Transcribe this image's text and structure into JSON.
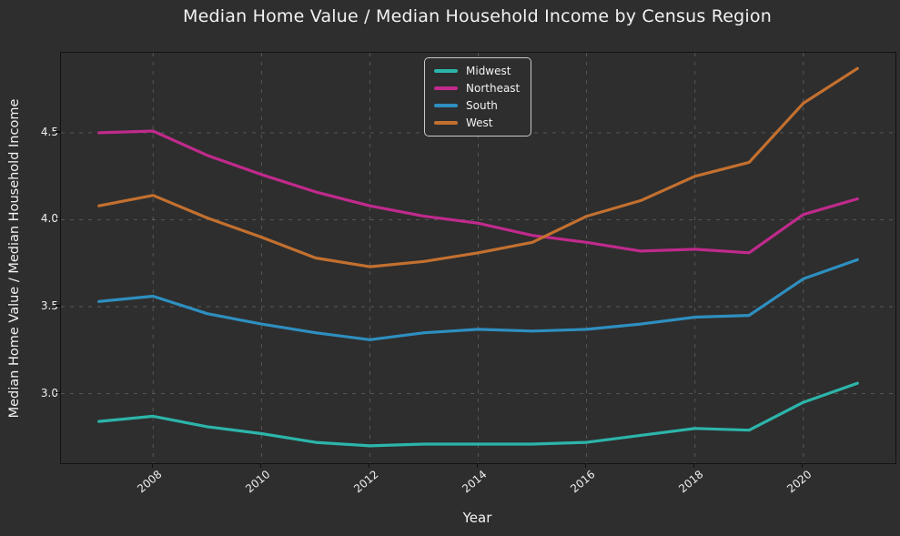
{
  "figure": {
    "background": "#2e2e2e",
    "text_color": "#f2f2f2",
    "grid_color": "rgba(255,255,255,0.22)",
    "spine_color": "#121212"
  },
  "chart_data": {
    "type": "line",
    "title": "Median Home Value / Median Household Income by Census Region",
    "xlabel": "Year",
    "ylabel": "Median Home Value / Median Household Income",
    "x": [
      2007,
      2008,
      2009,
      2010,
      2011,
      2012,
      2013,
      2014,
      2015,
      2016,
      2017,
      2018,
      2019,
      2020,
      2021
    ],
    "series": [
      {
        "name": "Midwest",
        "color": "#2cb5aa",
        "values": [
          2.84,
          2.87,
          2.81,
          2.77,
          2.72,
          2.7,
          2.71,
          2.71,
          2.71,
          2.72,
          2.76,
          2.8,
          2.79,
          2.95,
          3.06
        ]
      },
      {
        "name": "Northeast",
        "color": "#c02a8c",
        "values": [
          4.5,
          4.51,
          4.37,
          4.26,
          4.16,
          4.08,
          4.02,
          3.98,
          3.91,
          3.87,
          3.82,
          3.83,
          3.81,
          4.03,
          4.12
        ]
      },
      {
        "name": "South",
        "color": "#2e8fc0",
        "values": [
          3.53,
          3.56,
          3.46,
          3.4,
          3.35,
          3.31,
          3.35,
          3.37,
          3.36,
          3.37,
          3.4,
          3.44,
          3.45,
          3.66,
          3.77
        ]
      },
      {
        "name": "West",
        "color": "#c3702f",
        "values": [
          4.08,
          4.14,
          4.01,
          3.9,
          3.78,
          3.73,
          3.76,
          3.81,
          3.87,
          4.02,
          4.11,
          4.25,
          4.33,
          4.67,
          4.87
        ]
      }
    ],
    "xticks": [
      2008,
      2010,
      2012,
      2014,
      2016,
      2018,
      2020
    ],
    "yticks": [
      3.0,
      3.5,
      4.0,
      4.5
    ],
    "xlim": [
      2006.3,
      2021.7
    ],
    "ylim": [
      2.6,
      4.96
    ],
    "grid": true,
    "legend_position": "upper center"
  }
}
